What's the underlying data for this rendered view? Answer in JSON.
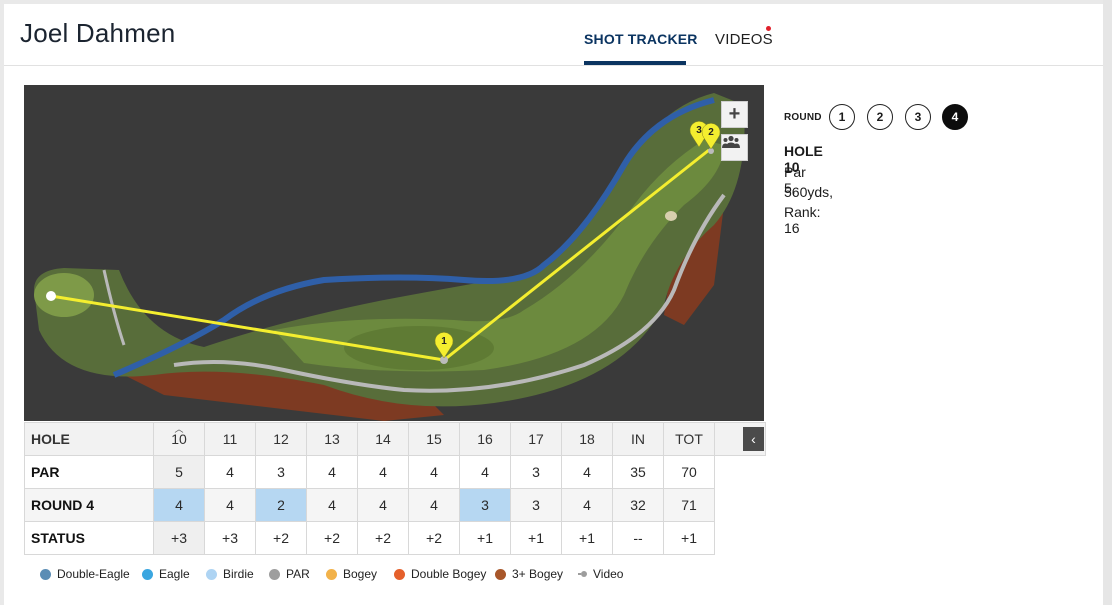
{
  "player": {
    "name": "Joel Dahmen"
  },
  "tabs": [
    {
      "label": "SHOT TRACKER",
      "active": true
    },
    {
      "label": "VIDEOS",
      "has_notification": true
    }
  ],
  "map": {
    "zoom_label": "+",
    "group_icon": "group-icon",
    "markers": [
      "1",
      "3",
      "2"
    ]
  },
  "round_selector": {
    "label": "ROUND",
    "rounds": [
      "1",
      "2",
      "3",
      "4"
    ],
    "active_round": "4"
  },
  "hole": {
    "title": "HOLE 10",
    "par": "Par 5,",
    "yards": "560yds,",
    "rank": "Rank: 16"
  },
  "scorecard": {
    "collapse_icon": "chevron-left-icon",
    "header": {
      "label": "HOLE",
      "cells": [
        "10",
        "11",
        "12",
        "13",
        "14",
        "15",
        "16",
        "17",
        "18",
        "IN",
        "TOT"
      ]
    },
    "par": {
      "label": "PAR",
      "cells": [
        "5",
        "4",
        "3",
        "4",
        "4",
        "4",
        "4",
        "3",
        "4",
        "35",
        "70"
      ]
    },
    "round": {
      "label": "ROUND 4",
      "cells": [
        "4",
        "4",
        "2",
        "4",
        "4",
        "4",
        "3",
        "3",
        "4",
        "32",
        "71"
      ]
    },
    "status": {
      "label": "STATUS",
      "cells": [
        "+3",
        "+3",
        "+2",
        "+2",
        "+2",
        "+2",
        "+1",
        "+1",
        "+1",
        "--",
        "+1"
      ]
    }
  },
  "legend": [
    {
      "label": "Double-Eagle",
      "color": "#5b8db5"
    },
    {
      "label": "Eagle",
      "color": "#3aa6e0"
    },
    {
      "label": "Birdie",
      "color": "#aed4f3"
    },
    {
      "label": "PAR",
      "color": "#9e9e9e"
    },
    {
      "label": "Bogey",
      "color": "#f2b24a"
    },
    {
      "label": "Double Bogey",
      "color": "#e5602b"
    },
    {
      "label": "3+ Bogey",
      "color": "#a8572a"
    },
    {
      "label": "Video",
      "color": "#9d9d9d"
    }
  ],
  "colors": {
    "brand": "#0b3461",
    "birdie_cell": "#b6d7f2",
    "shot_line": "#f4ee2f",
    "notification": "#e0202b"
  }
}
